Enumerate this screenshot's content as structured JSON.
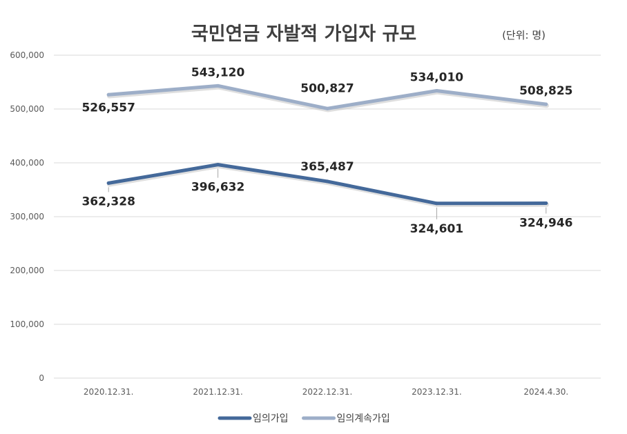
{
  "chart_data": {
    "type": "line",
    "title": "국민연금 자발적 가입자 규모",
    "unit_note": "(단위: 명)",
    "categories": [
      "2020.12.31.",
      "2021.12.31.",
      "2022.12.31.",
      "2023.12.31.",
      "2024.4.30."
    ],
    "y_ticks": [
      "0",
      "100,000",
      "200,000",
      "300,000",
      "400,000",
      "500,000",
      "600,000"
    ],
    "ylim": [
      0,
      600000
    ],
    "grid": true,
    "legend_position": "bottom",
    "series": [
      {
        "name": "임의가입",
        "color": "#44699A",
        "values": [
          362328,
          396632,
          365487,
          324601,
          324946
        ],
        "labels": [
          "362,328",
          "396,632",
          "365,487",
          "324,601",
          "324,946"
        ]
      },
      {
        "name": "임의계속가입",
        "color": "#9DAEC8",
        "values": [
          526557,
          543120,
          500827,
          534010,
          508825
        ],
        "labels": [
          "526,557",
          "543,120",
          "500,827",
          "534,010",
          "508,825"
        ]
      }
    ]
  }
}
